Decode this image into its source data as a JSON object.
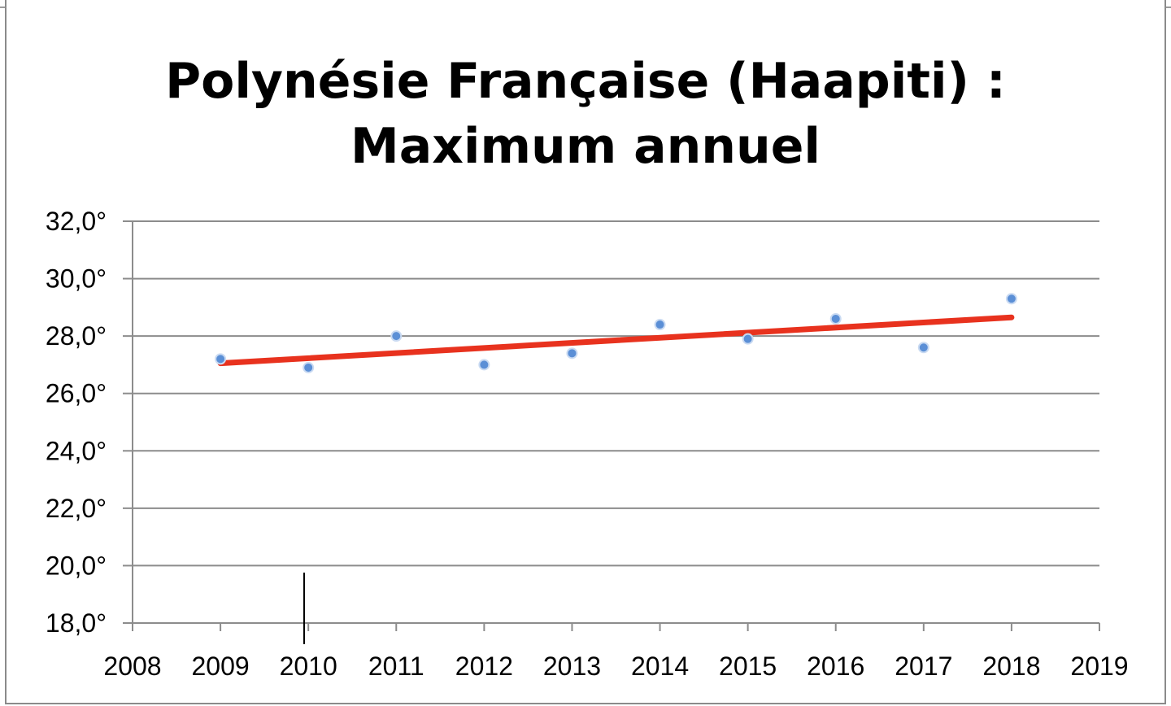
{
  "chart_data": {
    "type": "scatter",
    "title": "Polynésie Française (Haapiti) :",
    "subtitle": "Maximum annuel",
    "xlabel": "",
    "ylabel": "",
    "xlim": [
      2008,
      2019
    ],
    "ylim": [
      18,
      32
    ],
    "x_ticks": [
      "2008",
      "2009",
      "2010",
      "2011",
      "2012",
      "2013",
      "2014",
      "2015",
      "2016",
      "2017",
      "2018",
      "2019"
    ],
    "y_ticks": [
      "18,0°",
      "20,0°",
      "22,0°",
      "24,0°",
      "26,0°",
      "28,0°",
      "30,0°",
      "32,0°"
    ],
    "grid": true,
    "legend": "none",
    "series": [
      {
        "color": "#5b8fd6",
        "x": [
          2009,
          2010,
          2011,
          2012,
          2013,
          2014,
          2015,
          2016,
          2017,
          2018
        ],
        "values": [
          27.2,
          26.9,
          28.0,
          27.0,
          27.4,
          28.4,
          27.9,
          28.6,
          27.6,
          29.3
        ]
      }
    ],
    "trendline": {
      "color": "#e8321e",
      "x": [
        2009,
        2018
      ],
      "values": [
        27.05,
        28.65
      ]
    }
  }
}
